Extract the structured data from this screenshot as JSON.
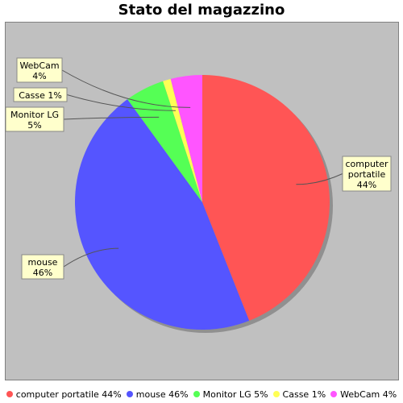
{
  "chart_data": {
    "type": "pie",
    "title": "Stato del magazzino",
    "slices": [
      {
        "label": "computer portatile",
        "label_lines": [
          "computer",
          "portatile"
        ],
        "percent_label": "44%",
        "value": 44,
        "color": "#ff5555"
      },
      {
        "label": "mouse",
        "label_lines": [
          "mouse"
        ],
        "percent_label": "46%",
        "value": 46,
        "color": "#5555ff"
      },
      {
        "label": "Monitor LG",
        "label_lines": [
          "Monitor LG"
        ],
        "percent_label": "5%",
        "value": 5,
        "color": "#55ff55"
      },
      {
        "label": "Casse",
        "label_lines": [
          "Casse 1%"
        ],
        "percent_label": "1%",
        "value": 1,
        "color": "#ffff55"
      },
      {
        "label": "WebCam",
        "label_lines": [
          "WebCam"
        ],
        "percent_label": "4%",
        "value": 4,
        "color": "#ff55ff"
      }
    ],
    "legend": {
      "placement": "bottom",
      "entries": [
        "computer portatile 44%",
        "mouse 46%",
        "Monitor LG 5%",
        "Casse 1%",
        "WebCam 4%"
      ]
    }
  }
}
